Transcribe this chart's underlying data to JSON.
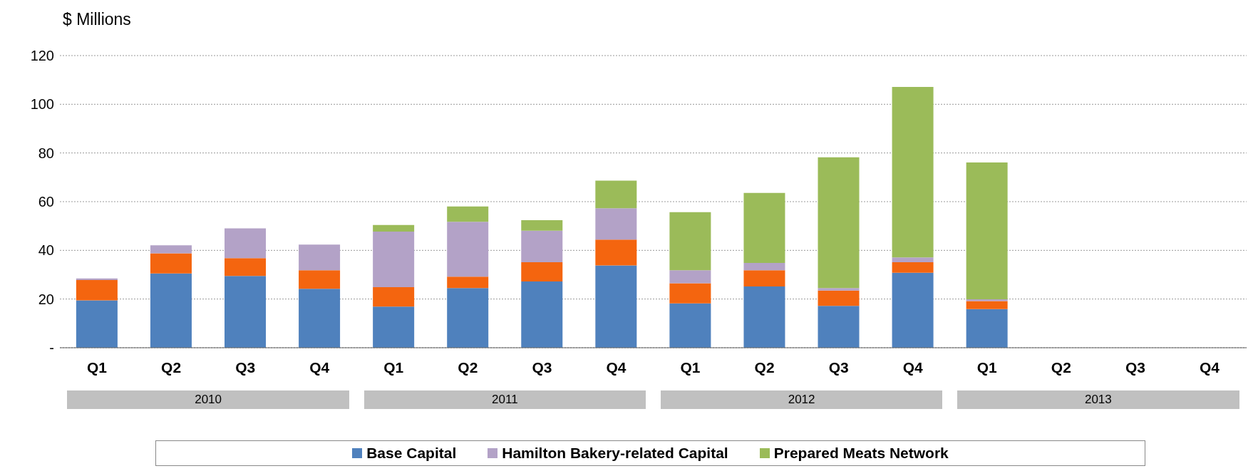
{
  "chart_data": {
    "type": "bar",
    "stacked": true,
    "ylabel": "$ Millions",
    "categories": [
      "Q1",
      "Q2",
      "Q3",
      "Q4",
      "Q1",
      "Q2",
      "Q3",
      "Q4",
      "Q1",
      "Q2",
      "Q3",
      "Q4",
      "Q1",
      "Q2",
      "Q3",
      "Q4"
    ],
    "series": [
      {
        "name": "Base Capital",
        "color": "#4f81bd",
        "values": [
          19.5,
          30.5,
          29.5,
          24.2,
          16.9,
          24.5,
          27.2,
          33.8,
          18.2,
          25.2,
          17.2,
          30.8,
          15.9,
          null,
          null,
          null
        ]
      },
      {
        "color": "#f4650f",
        "values": [
          8.3,
          8.3,
          7.3,
          7.6,
          8,
          4.7,
          7.9,
          10.6,
          8.3,
          6.6,
          6.3,
          4.3,
          3.3,
          null,
          null,
          null
        ]
      },
      {
        "name": "Hamilton Bakery-related Capital",
        "color": "#b3a2c7",
        "values": [
          0.7,
          3.3,
          12.2,
          10.6,
          22.8,
          22.5,
          13,
          12.9,
          5.3,
          3,
          1,
          2,
          0.7,
          null,
          null,
          null
        ]
      },
      {
        "name": "Prepared Meats Network",
        "color": "#9bbb59",
        "values": [
          0,
          0,
          0,
          0,
          2.7,
          6.3,
          4.3,
          11.3,
          23.9,
          28.8,
          53.7,
          70,
          56.2,
          null,
          null,
          null
        ]
      }
    ],
    "ylim": [
      0,
      120
    ],
    "yticks": [
      {
        "value": 0,
        "label": "-"
      },
      20,
      40,
      60,
      80,
      100,
      120
    ],
    "grid": "y",
    "legend": "bottom",
    "annotations": [
      "2010",
      "2011",
      "2012",
      "2013"
    ]
  }
}
